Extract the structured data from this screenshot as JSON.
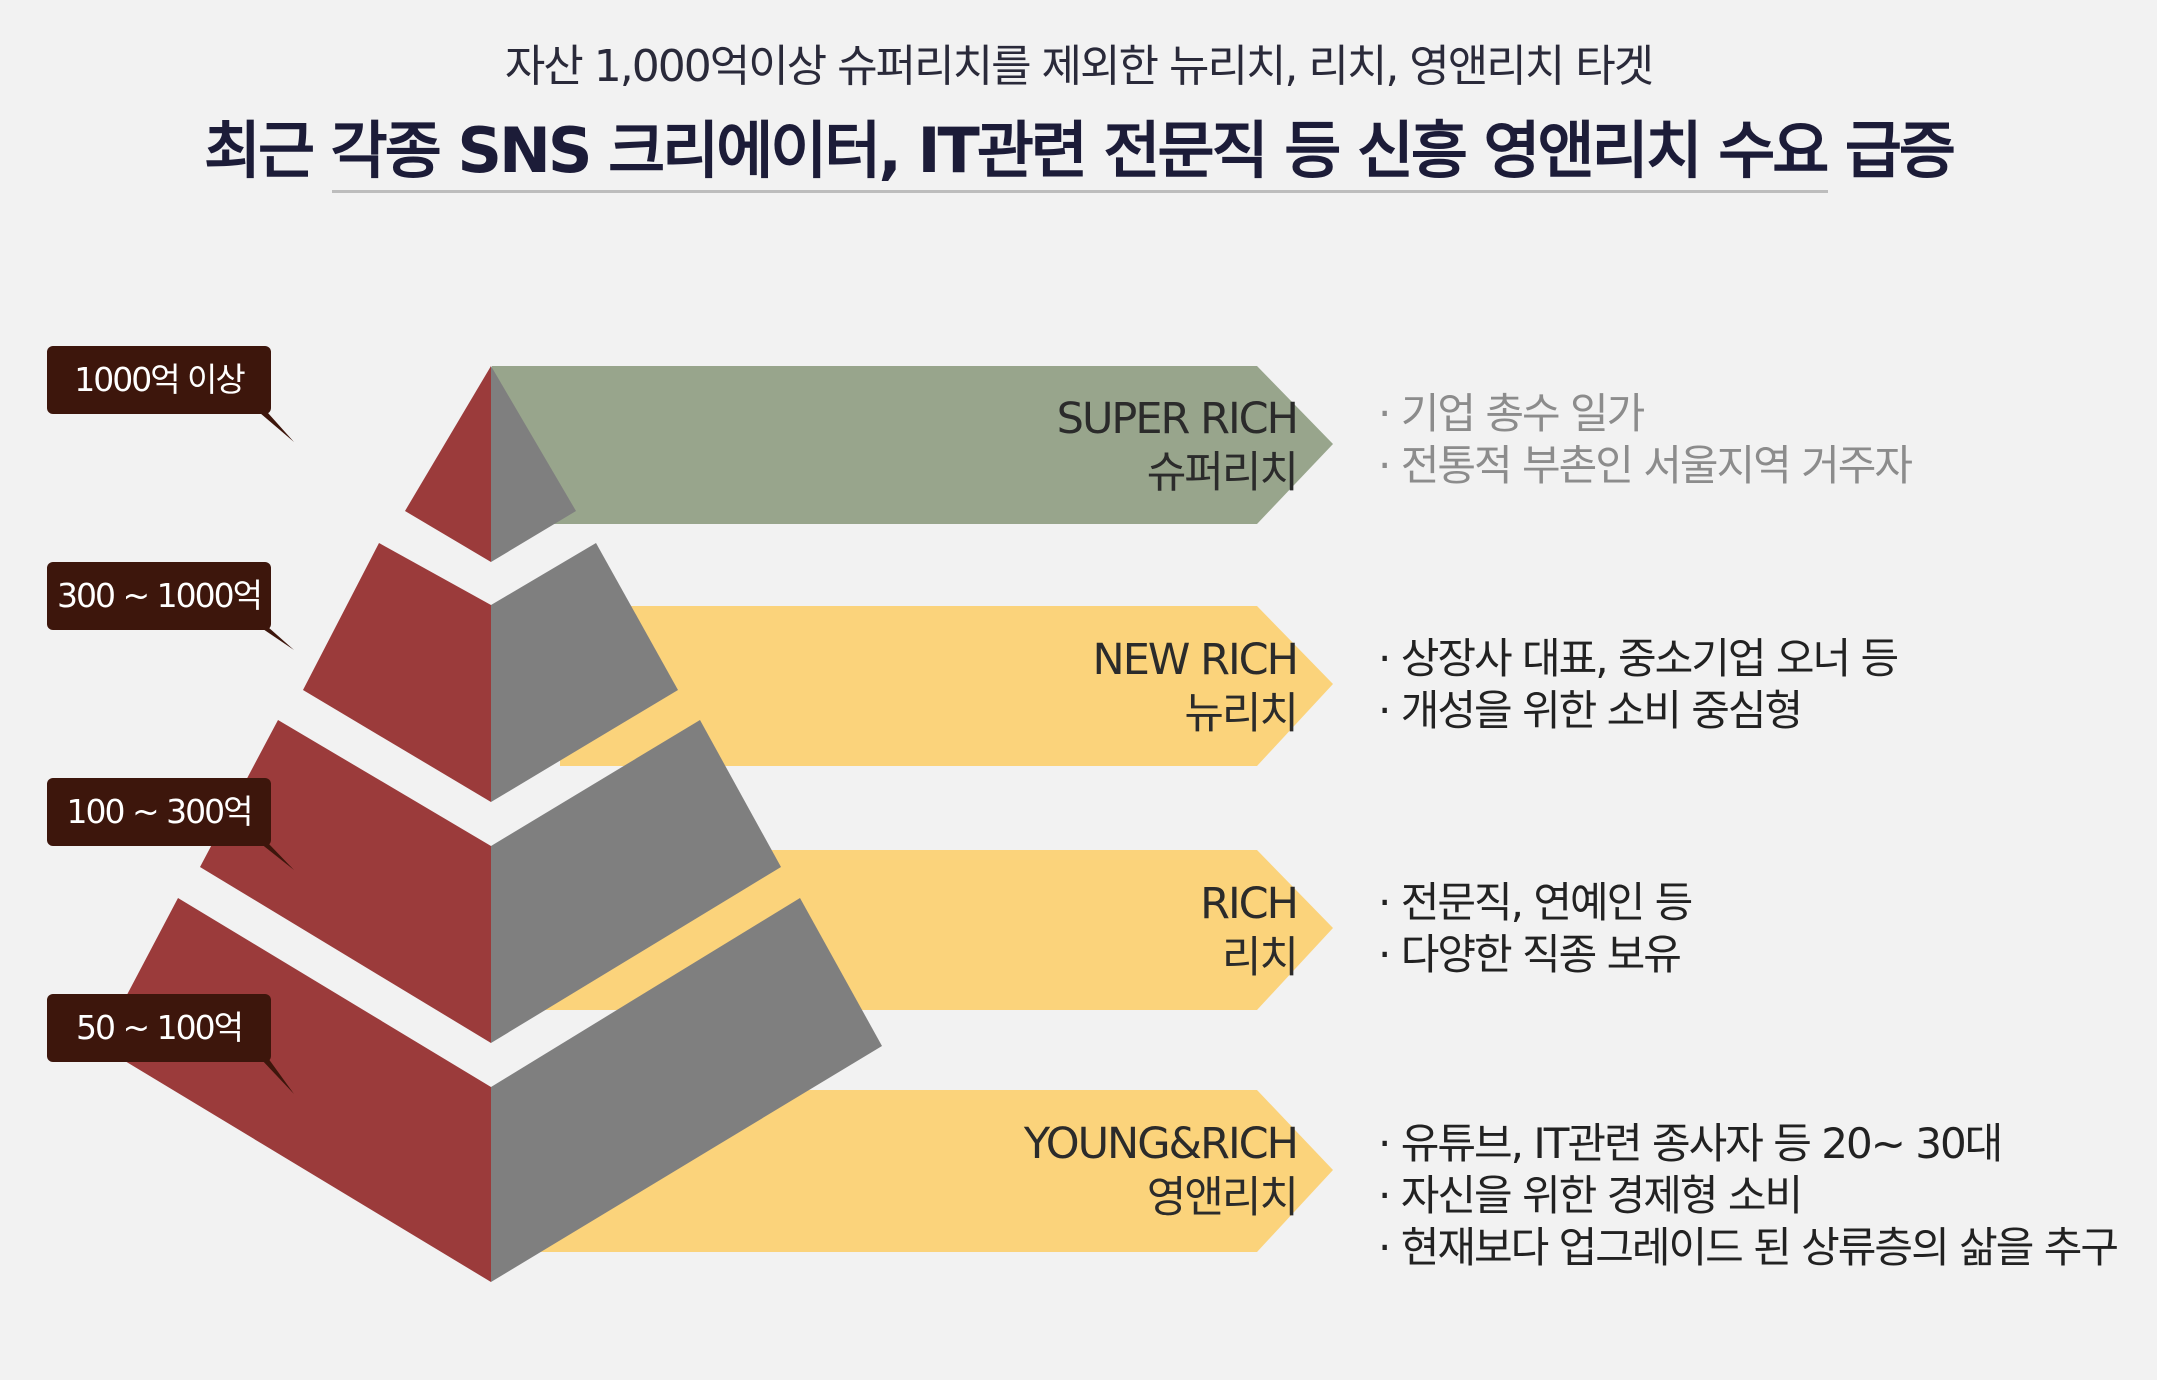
{
  "header": {
    "subtitle": "자산 1,000억이상 슈퍼리치를 제외한 뉴리치, 리치, 영앤리치 타겟",
    "title": "최근 각종 SNS 크리에이터, IT관련 전문직 등 신흥 영앤리치 수요 급증"
  },
  "colors": {
    "super_rich_band": "#98a58c",
    "band": "#fbd37b",
    "pyramid_left": "#9b3b3b",
    "pyramid_right": "#7f7f7f",
    "badge": "#3d160c"
  },
  "tiers": [
    {
      "badge": "1000억 이상",
      "label_en": "SUPER RICH",
      "label_ko": "슈퍼리치",
      "descriptions": [
        "· 기업 총수 일가",
        "· 전통적 부촌인 서울지역 거주자"
      ]
    },
    {
      "badge": "300 ~ 1000억",
      "label_en": "NEW RICH",
      "label_ko": "뉴리치",
      "descriptions": [
        "· 상장사 대표, 중소기업 오너 등",
        "· 개성을 위한 소비 중심형"
      ]
    },
    {
      "badge": "100 ~ 300억",
      "label_en": "RICH",
      "label_ko": "리치",
      "descriptions": [
        "· 전문직, 연예인 등",
        "· 다양한 직종 보유"
      ]
    },
    {
      "badge": "50 ~ 100억",
      "label_en": "YOUNG&RICH",
      "label_ko": "영앤리치",
      "descriptions": [
        "· 유튜브, IT관련 종사자 등 20~ 30대",
        "· 자신을 위한 경제형 소비",
        "· 현재보다 업그레이드 된 상류층의 삶을 추구"
      ]
    }
  ]
}
